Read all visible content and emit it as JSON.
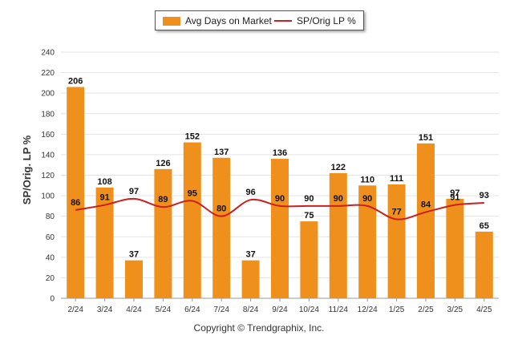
{
  "chart_data": {
    "type": "bar",
    "categories": [
      "2/24",
      "3/24",
      "4/24",
      "5/24",
      "6/24",
      "7/24",
      "8/24",
      "9/24",
      "10/24",
      "11/24",
      "12/24",
      "1/25",
      "2/25",
      "3/25",
      "4/25"
    ],
    "series": [
      {
        "name": "Avg Days on Market",
        "type": "bar",
        "color": "#f0901c",
        "values": [
          206,
          108,
          37,
          126,
          152,
          137,
          37,
          136,
          75,
          122,
          110,
          111,
          151,
          97,
          65
        ]
      },
      {
        "name": "SP/Orig LP %",
        "type": "line",
        "color": "#cc1f1f",
        "values": [
          86,
          91,
          97,
          89,
          95,
          80,
          96,
          90,
          90,
          90,
          90,
          77,
          84,
          91,
          93
        ]
      }
    ],
    "ylabel": "SP/Orig. LP %",
    "ylim": [
      0,
      240
    ],
    "yticks": [
      0,
      20,
      40,
      60,
      80,
      100,
      120,
      140,
      160,
      180,
      200,
      220,
      240
    ],
    "grid": true,
    "legend": "top-center"
  },
  "footer": {
    "copyright": "Copyright © Trendgraphix, Inc."
  }
}
